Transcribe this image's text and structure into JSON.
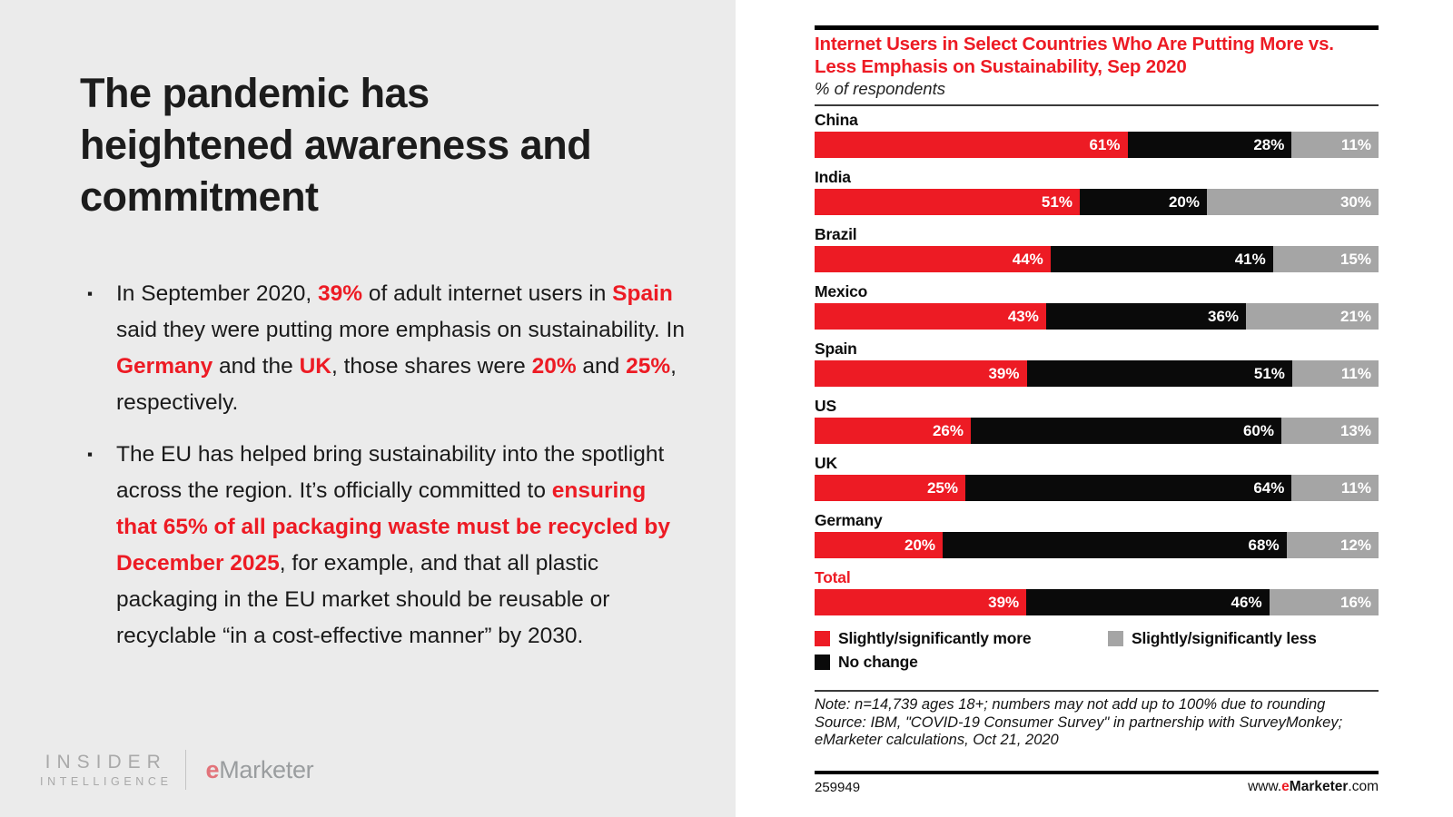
{
  "left_panel": {
    "title": "The pandemic has heightened awareness and commitment",
    "bullets": [
      {
        "segments": [
          {
            "t": "In September 2020, ",
            "c": ""
          },
          {
            "t": "39%",
            "c": "rb"
          },
          {
            "t": " of adult internet users in ",
            "c": ""
          },
          {
            "t": "Spain",
            "c": "rb"
          },
          {
            "t": " said they were putting more emphasis on sustainability. In ",
            "c": ""
          },
          {
            "t": "Germany",
            "c": "rb"
          },
          {
            "t": " and the ",
            "c": ""
          },
          {
            "t": "UK",
            "c": "rb"
          },
          {
            "t": ", those shares were ",
            "c": ""
          },
          {
            "t": "20%",
            "c": "rb"
          },
          {
            "t": " and ",
            "c": ""
          },
          {
            "t": "25%",
            "c": "rb"
          },
          {
            "t": ", respectively.",
            "c": ""
          }
        ]
      },
      {
        "segments": [
          {
            "t": "The EU has helped bring sustainability into the spotlight across the region. It’s officially committed to ",
            "c": ""
          },
          {
            "t": "ensuring that 65% of all packaging waste must be recycled by December 2025",
            "c": "rb"
          },
          {
            "t": ", for example, and that all plastic packaging in the EU market should be reusable or recyclable “in a cost-effective manner” by 2030.",
            "c": ""
          }
        ]
      }
    ],
    "bullet_marker": "▪",
    "logos": {
      "insider_line1": "INSIDER",
      "insider_line2": "INTELLIGENCE",
      "emarketer_segments": [
        {
          "t": "e",
          "c": "logo-e"
        },
        {
          "t": "Marketer",
          "c": "logo-m"
        }
      ]
    }
  },
  "chart_data": {
    "type": "bar",
    "orientation": "horizontal-stacked",
    "title": "Internet Users in Select Countries Who Are Putting More vs. Less Emphasis on Sustainability, Sep 2020",
    "subtitle": "% of respondents",
    "value_suffix": "%",
    "categories": [
      "China",
      "India",
      "Brazil",
      "Mexico",
      "Spain",
      "US",
      "UK",
      "Germany",
      "Total"
    ],
    "highlight_category": "Total",
    "series": [
      {
        "key": "more",
        "name": "Slightly/significantly more",
        "color": "#ED1B24",
        "values": [
          61,
          51,
          44,
          43,
          39,
          26,
          25,
          20,
          39
        ]
      },
      {
        "key": "no-change",
        "name": "No change",
        "color": "#0A0A0A",
        "values": [
          28,
          20,
          41,
          36,
          51,
          60,
          64,
          68,
          46
        ]
      },
      {
        "key": "less",
        "name": "Slightly/significantly less",
        "color": "#A5A5A5",
        "values": [
          11,
          30,
          15,
          21,
          11,
          13,
          11,
          12,
          16
        ]
      }
    ],
    "legend": [
      {
        "label": "Slightly/significantly more",
        "color": "#ED1B24"
      },
      {
        "label": "Slightly/significantly less",
        "color": "#A5A5A5"
      },
      {
        "label": "No change",
        "color": "#0A0A0A"
      }
    ],
    "legend_position": "bottom",
    "note": "Note: n=14,739 ages 18+; numbers may not add up to 100% due to rounding",
    "source": "Source: IBM, \"COVID-19 Consumer Survey\" in partnership with SurveyMonkey; eMarketer calculations, Oct 21, 2020",
    "chart_id": "259949",
    "footer_url_segments": [
      {
        "t": "www.",
        "c": ""
      },
      {
        "t": "e",
        "c": "rb"
      },
      {
        "t": "Marketer",
        "c": "b"
      },
      {
        "t": ".com",
        "c": ""
      }
    ]
  }
}
